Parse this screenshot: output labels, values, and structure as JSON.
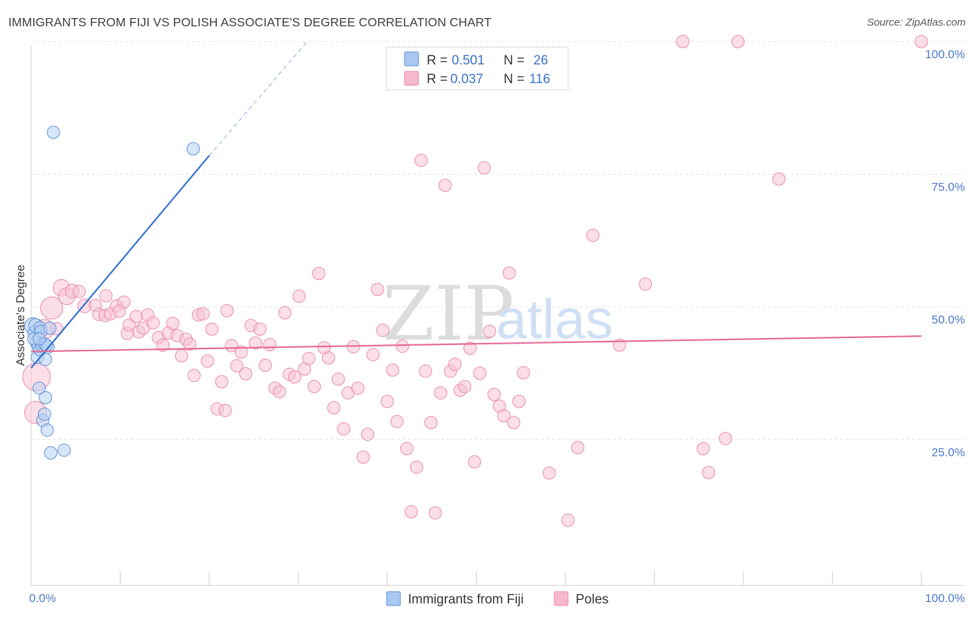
{
  "title": "IMMIGRANTS FROM FIJI VS POLISH ASSOCIATE'S DEGREE CORRELATION CHART",
  "source": "Source: ZipAtlas.com",
  "watermark": {
    "zip": "ZIP",
    "atlas": "atlas"
  },
  "chart_data": {
    "type": "scatter",
    "ylabel": "Associate's Degree",
    "xlim": [
      0,
      100
    ],
    "ylim": [
      0,
      100
    ],
    "x_ticks": [
      {
        "value": 0,
        "label": "0.0%"
      },
      {
        "value": 100,
        "label": "100.0%"
      }
    ],
    "y_ticks": [
      {
        "value": 25,
        "label": "25.0%"
      },
      {
        "value": 50,
        "label": "50.0%"
      },
      {
        "value": 75,
        "label": "75.0%"
      },
      {
        "value": 100,
        "label": "100.0%"
      }
    ],
    "grid": "horizontal dashed",
    "legend_top": [
      {
        "r_label": "R = ",
        "r_value": "0.501",
        "n_label": "N = ",
        "n_value": "26",
        "color": "#a9c8f0"
      },
      {
        "r_label": "R = ",
        "r_value": "0.037",
        "n_label": "N = ",
        "n_value": "116",
        "color": "#f6b8cd"
      }
    ],
    "series": [
      {
        "name": "Immigrants from Fiji",
        "fill": "#b7d1f3",
        "stroke": "#5b8fd6",
        "line_color": "#2f6fd0",
        "trend": {
          "x0": 0,
          "y0": 38.5,
          "x1": 20,
          "y1": 78.5,
          "dash_to_x": 31,
          "dash_to_y": 100
        },
        "points": [
          [
            0.2,
            46.4,
            12
          ],
          [
            0.4,
            45.1,
            10
          ],
          [
            0.5,
            46.5,
            10
          ],
          [
            0.6,
            43.3,
            9
          ],
          [
            0.7,
            40.5,
            9
          ],
          [
            0.8,
            42.5,
            9
          ],
          [
            0.9,
            34.7,
            9
          ],
          [
            1.0,
            41.9,
            9
          ],
          [
            1.0,
            46.1,
            9
          ],
          [
            1.2,
            42.8,
            9
          ],
          [
            1.3,
            28.6,
            9
          ],
          [
            1.5,
            29.8,
            9
          ],
          [
            1.6,
            32.9,
            9
          ],
          [
            1.8,
            26.8,
            9
          ],
          [
            1.6,
            40.1,
            9
          ],
          [
            2.2,
            22.5,
            9
          ],
          [
            3.7,
            23.0,
            9
          ],
          [
            2.5,
            82.9,
            9
          ],
          [
            18.2,
            79.8,
            9
          ],
          [
            1.5,
            43.0,
            9
          ],
          [
            1.9,
            42.4,
            9
          ],
          [
            0.3,
            44.0,
            9
          ],
          [
            1.1,
            45.4,
            9
          ],
          [
            1.7,
            42.8,
            9
          ],
          [
            0.9,
            44.0,
            9
          ],
          [
            2.1,
            46.0,
            9
          ]
        ]
      },
      {
        "name": "Poles",
        "fill": "#f8c3d5",
        "stroke": "#e889aa",
        "line_color": "#e46a95",
        "trend": {
          "x0": 0,
          "y0": 41.6,
          "x1": 100,
          "y1": 44.5
        },
        "points": [
          [
            0.5,
            30.1,
            16
          ],
          [
            0.6,
            36.8,
            20
          ],
          [
            1.5,
            45.8,
            14
          ],
          [
            2.3,
            49.8,
            16
          ],
          [
            3.4,
            53.6,
            12
          ],
          [
            4.0,
            52.0,
            12
          ],
          [
            4.6,
            53.0,
            10
          ],
          [
            6.0,
            50.2,
            10
          ],
          [
            7.2,
            50.3,
            9
          ],
          [
            7.6,
            48.6,
            9
          ],
          [
            8.3,
            48.4,
            9
          ],
          [
            8.4,
            52.1,
            9
          ],
          [
            8.9,
            48.7,
            9
          ],
          [
            9.6,
            50.2,
            9
          ],
          [
            10.4,
            50.9,
            9
          ],
          [
            10.8,
            45.0,
            9
          ],
          [
            11.0,
            46.6,
            9
          ],
          [
            11.8,
            48.2,
            9
          ],
          [
            12.1,
            45.3,
            9
          ],
          [
            12.6,
            46.0,
            9
          ],
          [
            13.1,
            48.5,
            9
          ],
          [
            13.7,
            47.0,
            9
          ],
          [
            14.3,
            44.2,
            9
          ],
          [
            14.8,
            42.8,
            9
          ],
          [
            15.4,
            45.1,
            9
          ],
          [
            15.9,
            46.9,
            9
          ],
          [
            16.4,
            44.6,
            9
          ],
          [
            16.9,
            40.8,
            9
          ],
          [
            17.4,
            43.9,
            9
          ],
          [
            17.8,
            43.0,
            9
          ],
          [
            18.3,
            37.1,
            9
          ],
          [
            18.8,
            48.5,
            9
          ],
          [
            19.3,
            48.7,
            9
          ],
          [
            19.8,
            39.8,
            9
          ],
          [
            20.3,
            45.8,
            9
          ],
          [
            20.9,
            30.8,
            9
          ],
          [
            21.4,
            35.9,
            9
          ],
          [
            22.0,
            49.3,
            9
          ],
          [
            22.5,
            42.7,
            9
          ],
          [
            23.1,
            38.9,
            9
          ],
          [
            23.6,
            41.5,
            9
          ],
          [
            24.1,
            37.4,
            9
          ],
          [
            24.7,
            46.5,
            9
          ],
          [
            25.2,
            43.2,
            9
          ],
          [
            25.7,
            45.8,
            9
          ],
          [
            26.3,
            39.0,
            9
          ],
          [
            26.8,
            42.9,
            9
          ],
          [
            27.4,
            34.7,
            9
          ],
          [
            27.9,
            34.0,
            9
          ],
          [
            28.5,
            48.9,
            9
          ],
          [
            29.0,
            37.3,
            9
          ],
          [
            29.6,
            36.8,
            9
          ],
          [
            30.1,
            52.0,
            9
          ],
          [
            30.7,
            38.3,
            9
          ],
          [
            31.2,
            40.3,
            9
          ],
          [
            31.8,
            35.0,
            9
          ],
          [
            32.3,
            56.3,
            9
          ],
          [
            32.9,
            42.3,
            9
          ],
          [
            33.4,
            40.4,
            9
          ],
          [
            34.0,
            31.0,
            9
          ],
          [
            34.5,
            36.4,
            9
          ],
          [
            35.1,
            27.0,
            9
          ],
          [
            35.6,
            33.8,
            9
          ],
          [
            36.2,
            42.5,
            9
          ],
          [
            36.7,
            34.7,
            9
          ],
          [
            37.3,
            21.7,
            9
          ],
          [
            37.8,
            26.0,
            9
          ],
          [
            38.4,
            41.0,
            9
          ],
          [
            38.9,
            53.3,
            9
          ],
          [
            39.5,
            45.6,
            9
          ],
          [
            40.0,
            32.2,
            9
          ],
          [
            40.6,
            38.1,
            9
          ],
          [
            41.1,
            28.4,
            9
          ],
          [
            41.7,
            42.6,
            9
          ],
          [
            42.2,
            23.3,
            9
          ],
          [
            42.7,
            11.4,
            9
          ],
          [
            43.3,
            19.8,
            9
          ],
          [
            43.8,
            77.6,
            9
          ],
          [
            44.3,
            37.9,
            9
          ],
          [
            44.9,
            28.2,
            9
          ],
          [
            45.4,
            11.2,
            9
          ],
          [
            46.0,
            33.8,
            9
          ],
          [
            46.5,
            72.9,
            9
          ],
          [
            47.1,
            37.9,
            9
          ],
          [
            47.6,
            39.2,
            9
          ],
          [
            48.2,
            34.3,
            9
          ],
          [
            48.7,
            35.0,
            9
          ],
          [
            49.3,
            42.2,
            9
          ],
          [
            49.8,
            20.8,
            9
          ],
          [
            50.4,
            37.5,
            9
          ],
          [
            50.9,
            76.2,
            9
          ],
          [
            51.5,
            45.4,
            9
          ],
          [
            52.0,
            33.5,
            9
          ],
          [
            52.6,
            31.3,
            9
          ],
          [
            53.1,
            29.5,
            9
          ],
          [
            53.7,
            56.4,
            9
          ],
          [
            54.2,
            28.2,
            9
          ],
          [
            54.8,
            32.2,
            9
          ],
          [
            55.3,
            37.6,
            9
          ],
          [
            58.2,
            18.7,
            9
          ],
          [
            60.3,
            9.8,
            9
          ],
          [
            61.4,
            23.5,
            9
          ],
          [
            63.1,
            63.5,
            9
          ],
          [
            66.1,
            42.8,
            9
          ],
          [
            69.0,
            54.3,
            9
          ],
          [
            73.2,
            100.0,
            9
          ],
          [
            75.5,
            23.3,
            9
          ],
          [
            76.1,
            18.8,
            9
          ],
          [
            78.0,
            25.2,
            9
          ],
          [
            79.4,
            100.0,
            9
          ],
          [
            84.0,
            74.1,
            9
          ],
          [
            100.0,
            100.0,
            9
          ],
          [
            2.9,
            45.9,
            9
          ],
          [
            5.4,
            52.9,
            9
          ],
          [
            9.9,
            49.2,
            9
          ],
          [
            21.8,
            30.5,
            9
          ]
        ]
      }
    ]
  }
}
